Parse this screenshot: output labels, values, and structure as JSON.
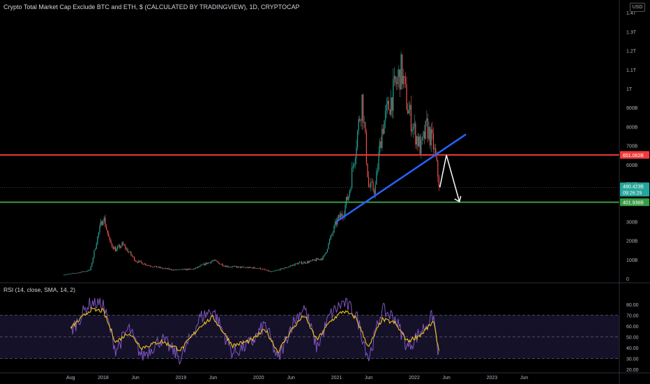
{
  "header": {
    "title": "Crypto Total Market Cap Exclude BTC and ETH, $ (CALCULATED BY TRADINGVIEW), 1D, CRYPTOCAP",
    "currency": "USD"
  },
  "rsi_panel": {
    "title": "RSI (14, close, SMA, 14, 2)"
  },
  "colors": {
    "background": "#000000",
    "up": "#26a69a",
    "down": "#ef5350",
    "resistance": "#ef3b3b",
    "support": "#3a9b46",
    "trendline": "#2962ff",
    "arrow": "#ffffff",
    "rsi_line": "#7e57c2",
    "rsi_ma": "#f0c419",
    "rsi_band": "#1a1533",
    "price_badge": "#26a69a"
  },
  "chart_data": [
    {
      "type": "candlestick",
      "title": "Crypto Total Market Cap Exclude BTC and ETH, $ (CALCULATED BY TRADINGVIEW), 1D, CRYPTOCAP",
      "x_ticks": [
        "Aug",
        "2018",
        "Jun",
        "2019",
        "Jun",
        "2020",
        "Jun",
        "2021",
        "Jun",
        "2022",
        "Jun",
        "2023",
        "Jun"
      ],
      "x_tick_dates": [
        "2017-08",
        "2018-01",
        "2018-06",
        "2019-01",
        "2019-06",
        "2020-01",
        "2020-06",
        "2021-01",
        "2021-06",
        "2022-01",
        "2022-06",
        "2023-01",
        "2023-06"
      ],
      "y_ticks": [
        "0",
        "100B",
        "200B",
        "300B",
        "400B",
        "500B",
        "600B",
        "700B",
        "800B",
        "900B",
        "1T",
        "1.1T",
        "1.2T",
        "1.3T",
        "1.4T"
      ],
      "y_tick_values": [
        0,
        100,
        200,
        300,
        400,
        500,
        600,
        700,
        800,
        900,
        1000,
        1100,
        1200,
        1300,
        1400
      ],
      "y_unit": "B USD",
      "ylim": [
        0,
        1450
      ],
      "grid": false,
      "close_series": {
        "dates": [
          "2017-07",
          "2017-09",
          "2017-11",
          "2017-12",
          "2018-01",
          "2018-02",
          "2018-03",
          "2018-04",
          "2018-05",
          "2018-06",
          "2018-08",
          "2018-10",
          "2018-12",
          "2019-03",
          "2019-06",
          "2019-08",
          "2019-10",
          "2020-01",
          "2020-03",
          "2020-05",
          "2020-07",
          "2020-09",
          "2020-11",
          "2021-01",
          "2021-02",
          "2021-03",
          "2021-04",
          "2021-05",
          "2021-06",
          "2021-07",
          "2021-08",
          "2021-09",
          "2021-10",
          "2021-11",
          "2021-12",
          "2022-01",
          "2022-02",
          "2022-03",
          "2022-04",
          "2022-05"
        ],
        "values": [
          20,
          30,
          45,
          200,
          330,
          190,
          150,
          180,
          140,
          95,
          70,
          55,
          45,
          50,
          95,
          65,
          60,
          55,
          35,
          55,
          80,
          90,
          110,
          300,
          350,
          450,
          700,
          950,
          480,
          470,
          780,
          900,
          1000,
          1100,
          900,
          780,
          680,
          800,
          700,
          480
        ]
      },
      "horizontal_levels": [
        {
          "label": "651.062B",
          "value": 651.062,
          "color": "#ef3b3b"
        },
        {
          "label": "401.936B",
          "value": 401.936,
          "color": "#3a9b46"
        }
      ],
      "last_price": {
        "label": "480.423B",
        "countdown": "09:26:29",
        "value": 480.423
      },
      "trendline": {
        "start": {
          "date": "2021-01",
          "value": 300
        },
        "end": {
          "date": "2022-09",
          "value": 760
        },
        "color": "#2962ff"
      },
      "projection_arrow": [
        {
          "date": "2022-05",
          "value": 480
        },
        {
          "date": "2022-06",
          "value": 650
        },
        {
          "date": "2022-08",
          "value": 405
        }
      ]
    },
    {
      "type": "line",
      "title": "RSI (14, close, SMA, 14, 2)",
      "y_ticks": [
        "20.00",
        "30.00",
        "40.00",
        "50.00",
        "60.00",
        "70.00",
        "80.00"
      ],
      "y_tick_values": [
        20,
        30,
        40,
        50,
        60,
        70,
        80
      ],
      "ylim": [
        17,
        88
      ],
      "band": [
        30,
        70
      ],
      "series": [
        {
          "color": "#7e57c2",
          "dates": [
            "2017-08",
            "2017-11",
            "2018-01",
            "2018-03",
            "2018-05",
            "2018-07",
            "2018-10",
            "2019-01",
            "2019-04",
            "2019-06",
            "2019-09",
            "2019-12",
            "2020-02",
            "2020-04",
            "2020-06",
            "2020-08",
            "2020-10",
            "2020-12",
            "2021-02",
            "2021-04",
            "2021-06",
            "2021-08",
            "2021-10",
            "2021-12",
            "2022-02",
            "2022-04",
            "2022-05"
          ],
          "values": [
            55,
            82,
            80,
            38,
            58,
            32,
            48,
            30,
            68,
            75,
            35,
            45,
            62,
            28,
            60,
            78,
            40,
            70,
            82,
            72,
            30,
            75,
            68,
            40,
            55,
            70,
            25
          ]
        },
        {
          "color": "#f0c419",
          "dates": [
            "2017-08",
            "2017-11",
            "2018-01",
            "2018-03",
            "2018-05",
            "2018-07",
            "2018-10",
            "2019-01",
            "2019-04",
            "2019-06",
            "2019-09",
            "2019-12",
            "2020-02",
            "2020-04",
            "2020-06",
            "2020-08",
            "2020-10",
            "2020-12",
            "2021-02",
            "2021-04",
            "2021-06",
            "2021-08",
            "2021-10",
            "2021-12",
            "2022-02",
            "2022-04",
            "2022-05"
          ],
          "values": [
            58,
            75,
            74,
            45,
            54,
            40,
            46,
            38,
            60,
            68,
            42,
            47,
            57,
            36,
            56,
            70,
            47,
            64,
            74,
            68,
            40,
            66,
            63,
            46,
            52,
            64,
            33
          ]
        }
      ]
    }
  ]
}
